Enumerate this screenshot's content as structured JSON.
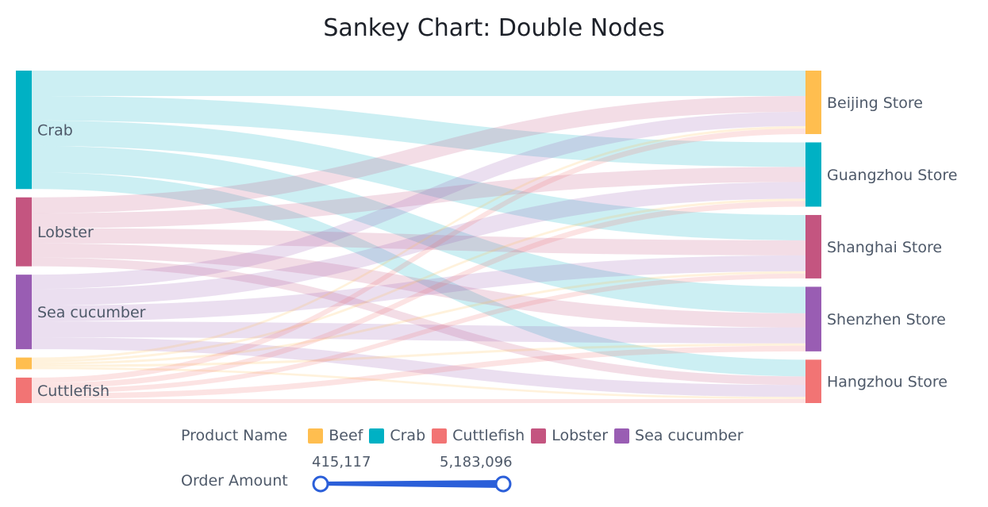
{
  "chart_data": {
    "type": "sankey",
    "title": "Sankey Chart: Double Nodes",
    "sources": [
      "Crab",
      "Lobster",
      "Sea cucumber",
      "Beef",
      "Cuttlefish"
    ],
    "targets": [
      "Beijing Store",
      "Guangzhou Store",
      "Shanghai Store",
      "Shenzhen Store",
      "Hangzhou Store"
    ],
    "node_colors": {
      "Beef": "#FFBE4F",
      "Crab": "#00B1C4",
      "Cuttlefish": "#F27474",
      "Lobster": "#C45580",
      "Sea cucumber": "#995DB3",
      "Beijing Store": "#FFBE4F",
      "Guangzhou Store": "#00B1C4",
      "Shanghai Store": "#C45580",
      "Shenzhen Store": "#995DB3",
      "Hangzhou Store": "#F27474"
    },
    "links": [
      {
        "source": "Crab",
        "target": "Beijing Store",
        "value": 4960000
      },
      {
        "source": "Crab",
        "target": "Guangzhou Store",
        "value": 4800000
      },
      {
        "source": "Crab",
        "target": "Shanghai Store",
        "value": 4960000
      },
      {
        "source": "Crab",
        "target": "Shenzhen Store",
        "value": 5183096
      },
      {
        "source": "Crab",
        "target": "Hangzhou Store",
        "value": 3260000
      },
      {
        "source": "Lobster",
        "target": "Beijing Store",
        "value": 3100000
      },
      {
        "source": "Lobster",
        "target": "Guangzhou Store",
        "value": 2950000
      },
      {
        "source": "Lobster",
        "target": "Shanghai Store",
        "value": 2950000
      },
      {
        "source": "Lobster",
        "target": "Shenzhen Store",
        "value": 2790000
      },
      {
        "source": "Lobster",
        "target": "Hangzhou Store",
        "value": 1700000
      },
      {
        "source": "Sea cucumber",
        "target": "Beijing Store",
        "value": 2790000
      },
      {
        "source": "Sea cucumber",
        "target": "Guangzhou Store",
        "value": 3260000
      },
      {
        "source": "Sea cucumber",
        "target": "Shanghai Store",
        "value": 3100000
      },
      {
        "source": "Sea cucumber",
        "target": "Shenzhen Store",
        "value": 3100000
      },
      {
        "source": "Sea cucumber",
        "target": "Hangzhou Store",
        "value": 2330000
      },
      {
        "source": "Beef",
        "target": "Beijing Store",
        "value": 470000
      },
      {
        "source": "Beef",
        "target": "Guangzhou Store",
        "value": 470000
      },
      {
        "source": "Beef",
        "target": "Shanghai Store",
        "value": 470000
      },
      {
        "source": "Beef",
        "target": "Shenzhen Store",
        "value": 470000
      },
      {
        "source": "Beef",
        "target": "Hangzhou Store",
        "value": 415117
      },
      {
        "source": "Cuttlefish",
        "target": "Beijing Store",
        "value": 1090000
      },
      {
        "source": "Cuttlefish",
        "target": "Guangzhou Store",
        "value": 1090000
      },
      {
        "source": "Cuttlefish",
        "target": "Shanghai Store",
        "value": 930000
      },
      {
        "source": "Cuttlefish",
        "target": "Shenzhen Store",
        "value": 1090000
      },
      {
        "source": "Cuttlefish",
        "target": "Hangzhou Store",
        "value": 780000
      }
    ],
    "node_labels_shown": {
      "Beef": false
    },
    "legend": {
      "title": "Product Name",
      "items": [
        {
          "label": "Beef",
          "color": "#FFBE4F"
        },
        {
          "label": "Crab",
          "color": "#00B1C4"
        },
        {
          "label": "Cuttlefish",
          "color": "#F27474"
        },
        {
          "label": "Lobster",
          "color": "#C45580"
        },
        {
          "label": "Sea cucumber",
          "color": "#995DB3"
        }
      ],
      "placement": "bottom"
    },
    "visual_map": {
      "title": "Order Amount",
      "min_label": "415,117",
      "max_label": "5,183,096",
      "min": 415117,
      "max": 5183096,
      "color": "#2B5FD9"
    }
  }
}
